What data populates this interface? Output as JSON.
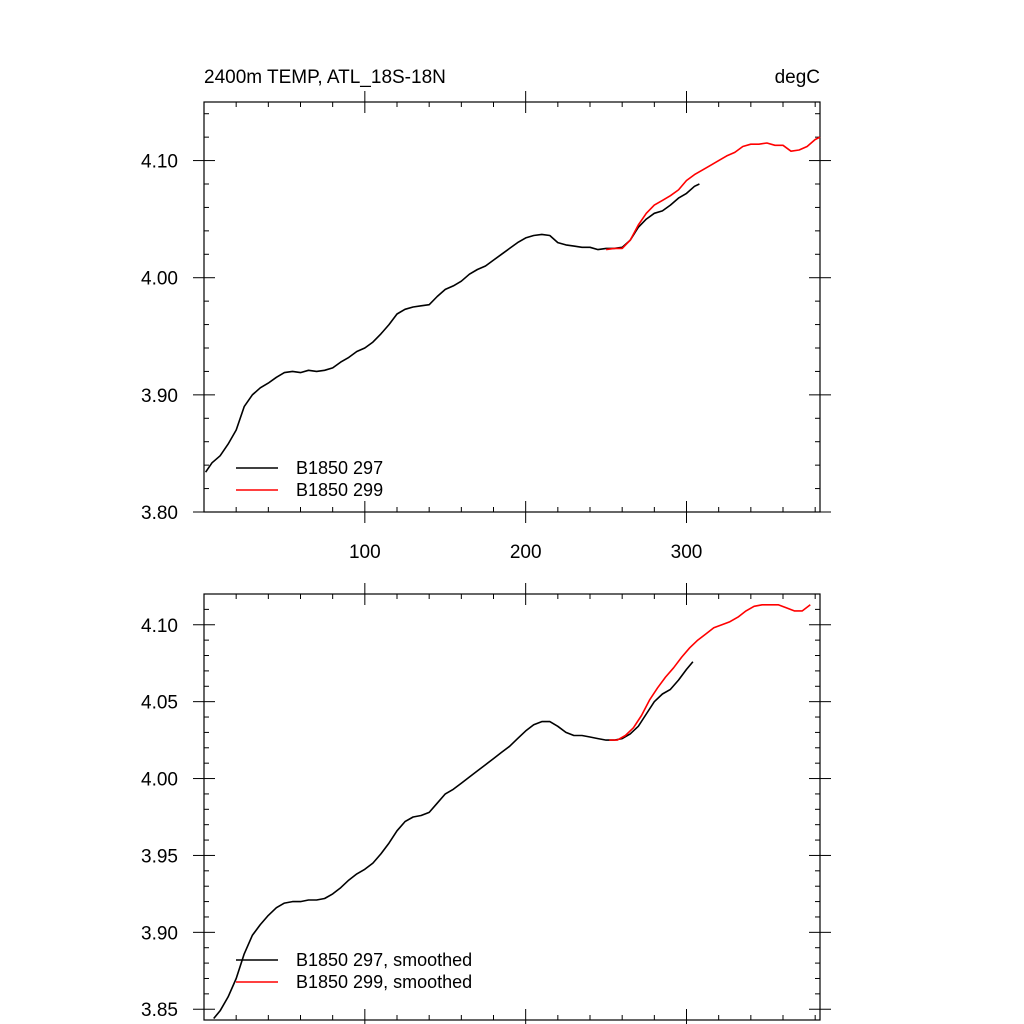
{
  "colors": {
    "series_297": "#000000",
    "series_299": "#ff0000",
    "frame": "#000000",
    "background": "#ffffff"
  },
  "chart_data": [
    {
      "type": "line",
      "title": "2400m TEMP, ATL_18S-18N",
      "units": "degC",
      "xlim": [
        0,
        383
      ],
      "ylim": [
        3.8,
        4.15
      ],
      "xticks": [
        100,
        200,
        300
      ],
      "xtick_labels": [
        "100",
        "200",
        "300"
      ],
      "yticks": [
        3.8,
        3.9,
        4.0,
        4.1
      ],
      "ytick_labels": [
        "3.80",
        "3.90",
        "4.00",
        "4.10"
      ],
      "grid": false,
      "legend_position": "bottom-left",
      "series": [
        {
          "name": "B1850 297",
          "color": "#000000",
          "x": [
            1,
            5,
            10,
            15,
            20,
            25,
            30,
            35,
            40,
            45,
            50,
            55,
            60,
            65,
            70,
            75,
            80,
            85,
            90,
            95,
            100,
            105,
            110,
            115,
            120,
            125,
            130,
            135,
            140,
            145,
            150,
            155,
            160,
            165,
            170,
            175,
            180,
            185,
            190,
            195,
            200,
            205,
            210,
            215,
            220,
            225,
            230,
            235,
            240,
            245,
            250,
            255,
            260,
            265,
            270,
            275,
            280,
            285,
            290,
            295,
            300,
            305,
            308
          ],
          "y": [
            3.834,
            3.842,
            3.848,
            3.858,
            3.87,
            3.89,
            3.9,
            3.906,
            3.91,
            3.915,
            3.919,
            3.92,
            3.919,
            3.921,
            3.92,
            3.921,
            3.923,
            3.928,
            3.932,
            3.937,
            3.94,
            3.945,
            3.952,
            3.96,
            3.969,
            3.973,
            3.975,
            3.976,
            3.977,
            3.984,
            3.99,
            3.993,
            3.997,
            4.003,
            4.007,
            4.01,
            4.015,
            4.02,
            4.025,
            4.03,
            4.034,
            4.036,
            4.037,
            4.036,
            4.03,
            4.028,
            4.027,
            4.026,
            4.026,
            4.024,
            4.025,
            4.025,
            4.026,
            4.032,
            4.043,
            4.05,
            4.055,
            4.057,
            4.062,
            4.068,
            4.072,
            4.078,
            4.08
          ]
        },
        {
          "name": "B1850 299",
          "color": "#ff0000",
          "x": [
            250,
            255,
            260,
            265,
            270,
            275,
            280,
            285,
            290,
            295,
            300,
            305,
            310,
            315,
            320,
            325,
            330,
            335,
            340,
            345,
            350,
            355,
            360,
            365,
            370,
            375,
            380,
            383
          ],
          "y": [
            4.024,
            4.025,
            4.025,
            4.032,
            4.045,
            4.055,
            4.062,
            4.066,
            4.07,
            4.075,
            4.083,
            4.088,
            4.092,
            4.096,
            4.1,
            4.104,
            4.107,
            4.112,
            4.114,
            4.114,
            4.115,
            4.113,
            4.113,
            4.108,
            4.109,
            4.112,
            4.118,
            4.12
          ]
        }
      ]
    },
    {
      "type": "line",
      "xlim": [
        0,
        383
      ],
      "ylim": [
        3.843,
        4.12
      ],
      "xticks": [
        100,
        200,
        300
      ],
      "xtick_labels": [],
      "yticks": [
        3.85,
        3.9,
        3.95,
        4.0,
        4.05,
        4.1
      ],
      "ytick_labels": [
        "3.85",
        "3.90",
        "3.95",
        "4.00",
        "4.05",
        "4.10"
      ],
      "grid": false,
      "legend_position": "bottom-left",
      "series": [
        {
          "name": "B1850 297, smoothed",
          "color": "#000000",
          "x": [
            6,
            10,
            15,
            20,
            25,
            30,
            35,
            40,
            45,
            50,
            55,
            60,
            65,
            70,
            75,
            80,
            85,
            90,
            95,
            100,
            105,
            110,
            115,
            120,
            125,
            130,
            135,
            140,
            145,
            150,
            155,
            160,
            165,
            170,
            175,
            180,
            185,
            190,
            195,
            200,
            205,
            210,
            215,
            220,
            225,
            230,
            235,
            240,
            245,
            250,
            255,
            260,
            265,
            270,
            275,
            280,
            285,
            290,
            295,
            300,
            304
          ],
          "y": [
            3.844,
            3.849,
            3.858,
            3.87,
            3.886,
            3.898,
            3.905,
            3.911,
            3.916,
            3.919,
            3.92,
            3.92,
            3.921,
            3.921,
            3.922,
            3.925,
            3.929,
            3.934,
            3.938,
            3.941,
            3.945,
            3.951,
            3.958,
            3.966,
            3.972,
            3.975,
            3.976,
            3.978,
            3.984,
            3.99,
            3.993,
            3.997,
            4.001,
            4.005,
            4.009,
            4.013,
            4.017,
            4.021,
            4.026,
            4.031,
            4.035,
            4.037,
            4.037,
            4.034,
            4.03,
            4.028,
            4.028,
            4.027,
            4.026,
            4.025,
            4.025,
            4.026,
            4.029,
            4.034,
            4.042,
            4.05,
            4.055,
            4.058,
            4.064,
            4.071,
            4.076
          ]
        },
        {
          "name": "B1850 299, smoothed",
          "color": "#ff0000",
          "x": [
            252,
            257,
            262,
            267,
            272,
            277,
            282,
            287,
            292,
            297,
            302,
            307,
            312,
            317,
            322,
            327,
            332,
            337,
            342,
            347,
            352,
            357,
            362,
            367,
            372,
            377
          ],
          "y": [
            4.025,
            4.025,
            4.028,
            4.033,
            4.041,
            4.051,
            4.059,
            4.066,
            4.072,
            4.079,
            4.085,
            4.09,
            4.094,
            4.098,
            4.1,
            4.102,
            4.105,
            4.109,
            4.112,
            4.113,
            4.113,
            4.113,
            4.111,
            4.109,
            4.109,
            4.113
          ]
        }
      ]
    }
  ]
}
